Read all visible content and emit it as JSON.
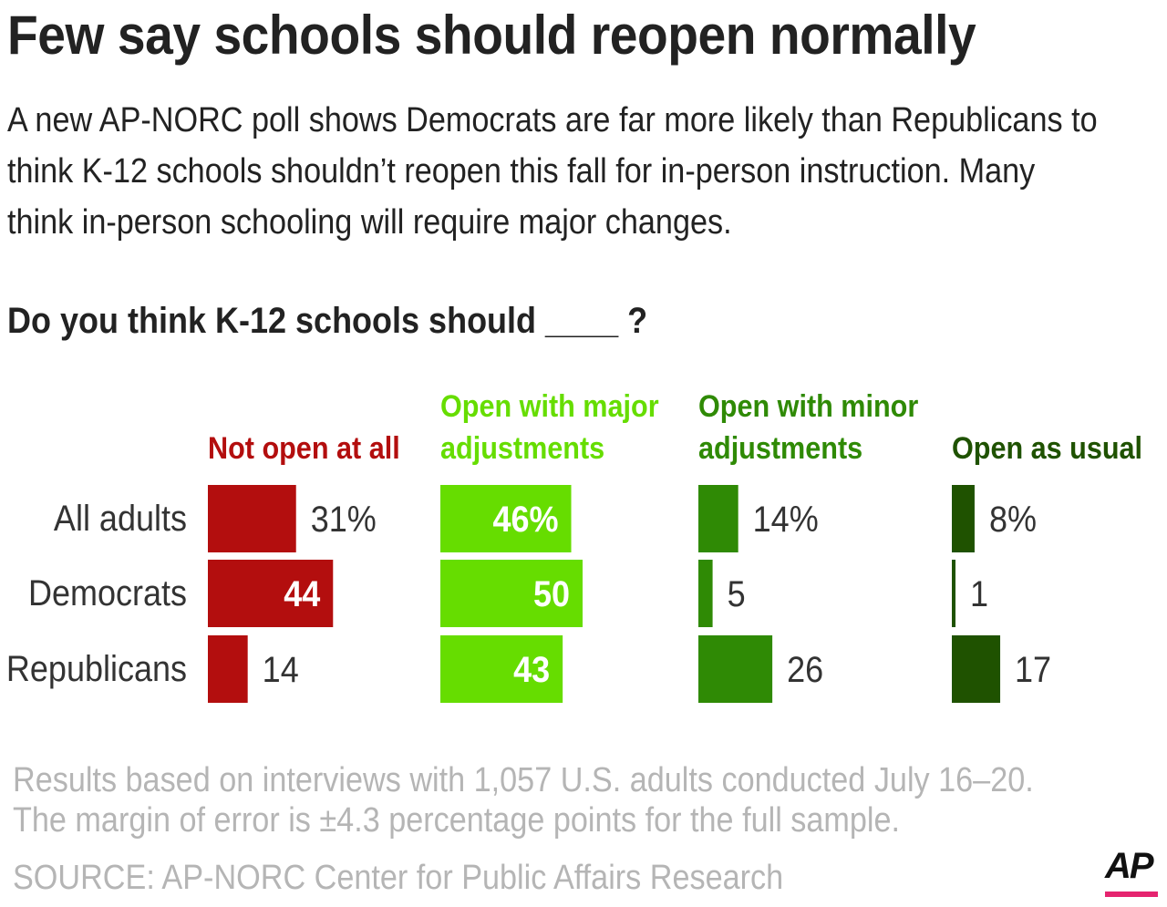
{
  "title": "Few say schools should reopen normally",
  "subtitle": "A new AP-NORC poll shows Democrats are far more likely than Republicans to think K-12 schools shouldn’t reopen this fall for in-person instruction. Many think in-person schooling will require major changes.",
  "question": "Do you think K-12 schools should ____ ?",
  "chart_data": {
    "type": "bar",
    "orientation": "horizontal",
    "categories": [
      "All adults",
      "Democrats",
      "Republicans"
    ],
    "series": [
      {
        "name": "Not open at all",
        "header": [
          "Not open at all"
        ],
        "color": "#b30e0e",
        "values": [
          31,
          44,
          14
        ],
        "labels": [
          "31%",
          "44",
          "14"
        ]
      },
      {
        "name": "Open with major adjustments",
        "header": [
          "Open with major",
          "adjustments"
        ],
        "color": "#66dd00",
        "values": [
          46,
          50,
          43
        ],
        "labels": [
          "46%",
          "50",
          "43"
        ]
      },
      {
        "name": "Open with minor adjustments",
        "header": [
          "Open with minor",
          "adjustments"
        ],
        "color": "#2f8a05",
        "values": [
          14,
          5,
          26
        ],
        "labels": [
          "14%",
          "5",
          "26"
        ]
      },
      {
        "name": "Open as usual",
        "header": [
          "Open as usual"
        ],
        "color": "#1f5200",
        "values": [
          8,
          1,
          17
        ],
        "labels": [
          "8%",
          "1",
          "17"
        ]
      }
    ],
    "unit": "%"
  },
  "notes": [
    "Results based on interviews with 1,057 U.S. adults conducted July 16–20.",
    "The margin of error is ±4.3 percentage points for the full sample."
  ],
  "source": "SOURCE: AP-NORC Center for Public Affairs Research",
  "logo": "AP",
  "colors": {
    "logo_accent": "#e5246f",
    "footnote": "#b5b5b5",
    "text": "#222222"
  }
}
